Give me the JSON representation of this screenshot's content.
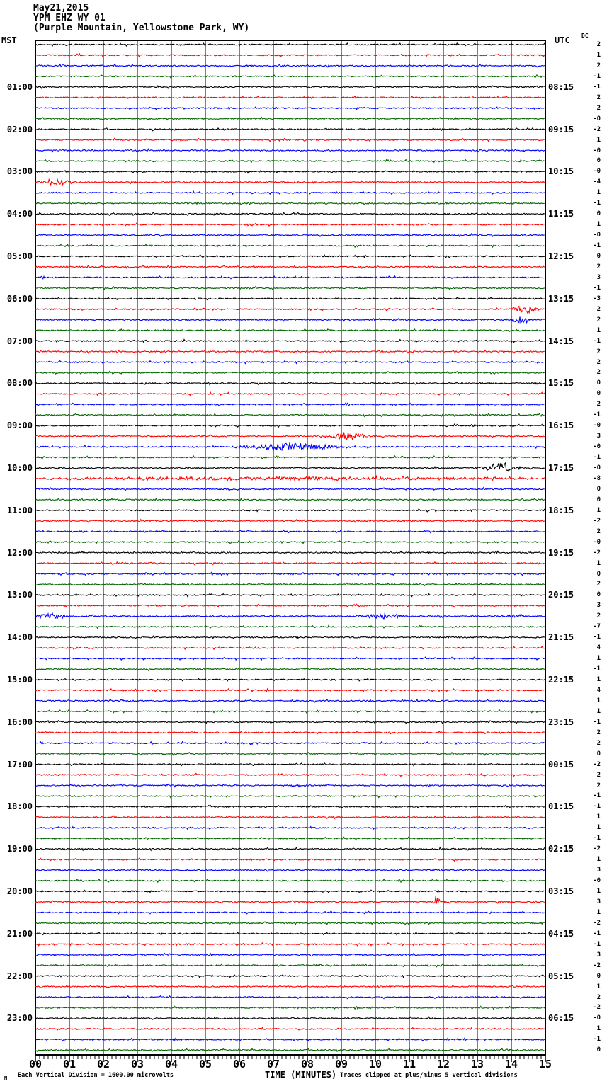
{
  "header": {
    "date": "May21,2015",
    "station": "YPM EHZ WY 01",
    "location": "(Purple Mountain, Yellowstone Park, WY)"
  },
  "axes": {
    "left_label": "MST",
    "right_label": "UTC",
    "dc_label": "DC",
    "x_axis_title": "TIME (MINUTES)",
    "left_times": [
      "01:00",
      "02:00",
      "03:00",
      "04:00",
      "05:00",
      "06:00",
      "07:00",
      "08:00",
      "09:00",
      "10:00",
      "11:00",
      "12:00",
      "13:00",
      "14:00",
      "15:00",
      "16:00",
      "17:00",
      "18:00",
      "19:00",
      "20:00",
      "21:00",
      "22:00",
      "23:00"
    ],
    "right_times": [
      "08:15",
      "09:15",
      "10:15",
      "11:15",
      "12:15",
      "13:15",
      "14:15",
      "15:15",
      "16:15",
      "17:15",
      "18:15",
      "19:15",
      "20:15",
      "21:15",
      "22:15",
      "23:15",
      "00:15",
      "01:15",
      "02:15",
      "03:15",
      "04:15",
      "05:15",
      "06:15"
    ],
    "x_ticks": [
      "00",
      "01",
      "02",
      "03",
      "04",
      "05",
      "06",
      "07",
      "08",
      "09",
      "10",
      "11",
      "12",
      "13",
      "14",
      "15"
    ]
  },
  "footer": {
    "corner_mark": "M",
    "scale_note": "Each Vertical Division = 1600.00 microvolts",
    "clip_note": "Traces clipped at plus/minus 5 vertical divisions"
  },
  "colors": {
    "trace_black": "#000000",
    "trace_red": "#ff0000",
    "trace_blue": "#0000ff",
    "trace_green": "#006600",
    "grid": "#808080",
    "frame": "#000000",
    "background": "#ffffff"
  },
  "chart_data": {
    "type": "line",
    "title": "YPM EHZ WY 01 helicorder (Purple Mountain, Yellowstone Park, WY) May21,2015",
    "xlabel": "TIME (MINUTES)",
    "x_range_minutes": [
      0,
      15
    ],
    "num_traces": 96,
    "traces_per_hour": 4,
    "minutes_per_trace": 15,
    "trace_color_cycle": [
      "#000000",
      "#ff0000",
      "#0000ff",
      "#006600"
    ],
    "dc_offsets": [
      "2",
      "1",
      "2",
      "-1",
      "-1",
      "2",
      "2",
      "-0",
      "-2",
      "1",
      "-0",
      "0",
      "-0",
      "-4",
      "1",
      "-1",
      "0",
      "1",
      "-0",
      "-1",
      "0",
      "2",
      "3",
      "-1",
      "-3",
      "2",
      "2",
      "1",
      "-1",
      "2",
      "2",
      "2",
      "0",
      "0",
      "2",
      "-1",
      "-0",
      "3",
      "-0",
      "-1",
      "-0",
      "-8",
      "0",
      "0",
      "1",
      "-2",
      "2",
      "-0",
      "-2",
      "1",
      "0",
      "2",
      "0",
      "3",
      "2",
      "-7",
      "-1",
      "4",
      "1",
      "-1",
      "1",
      "4",
      "1",
      "1",
      "-1",
      "2",
      "2",
      "0",
      "-2",
      "2",
      "2",
      "-1",
      "-1",
      "1",
      "1",
      "-1",
      "-2",
      "1",
      "3",
      "-0",
      "1",
      "3",
      "1",
      "-2",
      "-1",
      "-1",
      "3",
      "-2",
      "0",
      "1",
      "2",
      "-2",
      "-0",
      "1",
      "-1",
      "0"
    ],
    "events": [
      {
        "trace": 13,
        "minute": 0.6,
        "amplitude": 2.0,
        "width": 0.3
      },
      {
        "trace": 25,
        "minute": 14.4,
        "amplitude": 3.0,
        "width": 0.22
      },
      {
        "trace": 26,
        "minute": 14.3,
        "amplitude": 2.6,
        "width": 0.18
      },
      {
        "trace": 37,
        "minute": 9.25,
        "amplitude": 3.4,
        "width": 0.28
      },
      {
        "trace": 38,
        "minute": 7.5,
        "amplitude": 2.4,
        "width": 0.95
      },
      {
        "trace": 40,
        "minute": 13.65,
        "amplitude": 3.4,
        "width": 0.3
      },
      {
        "trace": 41,
        "minute": 7.5,
        "amplitude": 0.9,
        "width": 6.0
      },
      {
        "trace": 54,
        "minute": 0.45,
        "amplitude": 2.0,
        "width": 0.28
      },
      {
        "trace": 54,
        "minute": 10.3,
        "amplitude": 2.2,
        "width": 0.38
      },
      {
        "trace": 54,
        "minute": 14.1,
        "amplitude": 1.5,
        "width": 0.22
      },
      {
        "trace": 81,
        "minute": 11.8,
        "amplitude": 4.5,
        "width": 0.07
      }
    ]
  }
}
